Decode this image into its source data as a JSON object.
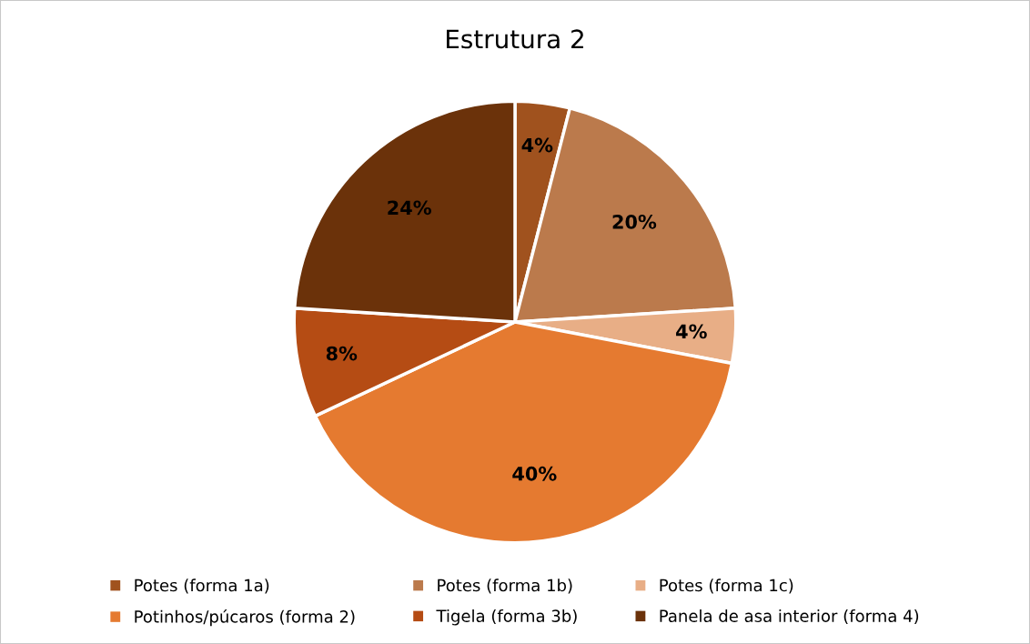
{
  "chart_data": {
    "type": "pie",
    "title": "Estrutura 2",
    "categories": [
      "Potes (forma 1a)",
      "Potes (forma 1b)",
      "Potes (forma 1c)",
      "Potinhos/púcaros (forma 2)",
      "Tigela (forma 3b)",
      "Panela de asa interior (forma 4)"
    ],
    "values": [
      4,
      20,
      4,
      40,
      8,
      24
    ],
    "colors": [
      "#a0521e",
      "#bb7a4c",
      "#e8ae86",
      "#e57a30",
      "#b54c14",
      "#6b320a"
    ],
    "value_labels": [
      "4%",
      "20%",
      "4%",
      "40%",
      "8%",
      "24%"
    ],
    "legend": "bottom"
  }
}
